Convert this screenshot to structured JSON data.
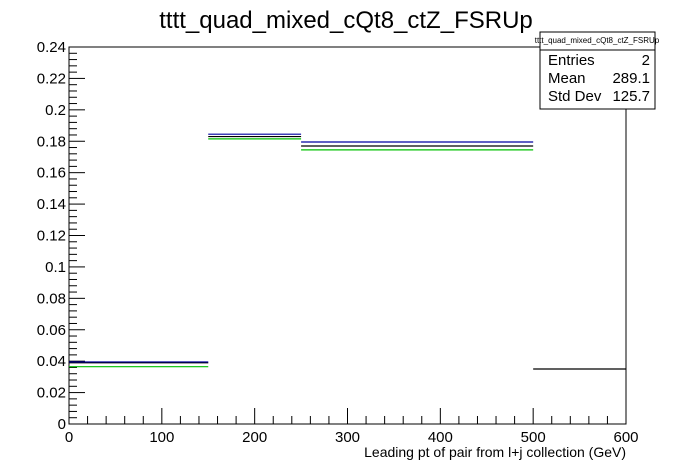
{
  "chart_data": {
    "type": "histogram",
    "title": "tttt_quad_mixed_cQt8_ctZ_FSRUp",
    "xlabel": "Leading pt of pair from l+j collection (GeV)",
    "ylabel": "",
    "xlim": [
      0,
      600
    ],
    "ylim": [
      0,
      0.24
    ],
    "x_ticks": [
      "0",
      "100",
      "200",
      "300",
      "400",
      "500",
      "600"
    ],
    "y_ticks": [
      "0",
      "0.02",
      "0.04",
      "0.06",
      "0.08",
      "0.1",
      "0.12",
      "0.14",
      "0.16",
      "0.18",
      "0.2",
      "0.22",
      "0.24"
    ],
    "grid": false,
    "series": [
      {
        "color": "#000000",
        "bins": [
          {
            "x0": 0,
            "x1": 150,
            "y": 0.039
          },
          {
            "x0": 150,
            "x1": 250,
            "y": 0.183
          },
          {
            "x0": 250,
            "x1": 500,
            "y": 0.177
          },
          {
            "x0": 500,
            "x1": 600,
            "y": 0.035
          }
        ]
      },
      {
        "color": "#0000a0",
        "bins": [
          {
            "x0": 0,
            "x1": 150,
            "y": 0.0395
          },
          {
            "x0": 150,
            "x1": 250,
            "y": 0.1845
          },
          {
            "x0": 250,
            "x1": 500,
            "y": 0.1795
          }
        ]
      },
      {
        "color": "#00c000",
        "bins": [
          {
            "x0": 0,
            "x1": 150,
            "y": 0.0365
          },
          {
            "x0": 150,
            "x1": 250,
            "y": 0.1815
          },
          {
            "x0": 250,
            "x1": 500,
            "y": 0.1745
          }
        ]
      }
    ],
    "stats_box": {
      "name": "tttt_quad_mixed_cQt8_ctZ_FSRUp",
      "position": "top-right",
      "rows": [
        {
          "label": "Entries",
          "value": "2"
        },
        {
          "label": "Mean",
          "value": "289.1"
        },
        {
          "label": "Std Dev",
          "value": "125.7"
        }
      ]
    }
  }
}
